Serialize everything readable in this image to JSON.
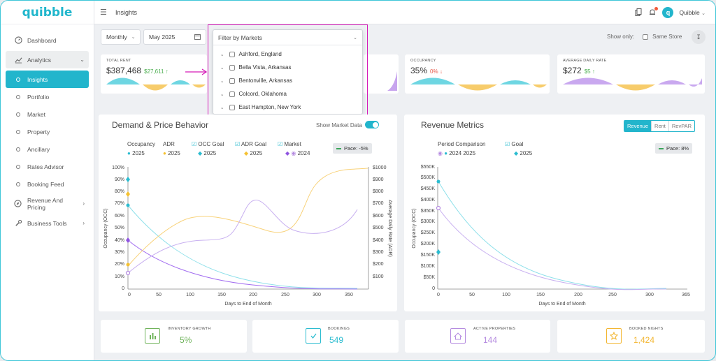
{
  "app": {
    "brand": "quibble",
    "page_title": "Insights",
    "user": "Quibble",
    "avatar_letter": "q"
  },
  "sidebar": {
    "items": [
      {
        "label": "Dashboard",
        "icon": "dashboard-icon"
      },
      {
        "label": "Analytics",
        "icon": "chart-line-icon",
        "expanded": true
      },
      {
        "label": "Insights",
        "active": true
      },
      {
        "label": "Portfolio"
      },
      {
        "label": "Market"
      },
      {
        "label": "Property"
      },
      {
        "label": "Ancillary"
      },
      {
        "label": "Rates Advisor"
      },
      {
        "label": "Booking Feed"
      },
      {
        "label": "Revenue And Pricing",
        "icon": "compass-icon"
      },
      {
        "label": "Business Tools",
        "icon": "wrench-icon"
      }
    ]
  },
  "filters": {
    "period": "Monthly",
    "month": "May 2025",
    "markets_placeholder": "Filter by Markets",
    "show_only": "Show only:",
    "same_store": "Same Store"
  },
  "markets_dropdown": {
    "options": [
      "Ashford, England",
      "Bella Vista, Arkansas",
      "Bentonville, Arkansas",
      "Colcord, Oklahoma",
      "East Hampton, New York"
    ]
  },
  "kpis": [
    {
      "label": "TOTAL RENT",
      "value": "$387,468",
      "change": "$27,611",
      "dir": "up"
    },
    {
      "label": "OCCUPANCY",
      "value": "35%",
      "change": "0%",
      "dir": "down"
    },
    {
      "label": "AVERAGE DAILY RATE",
      "value": "$272",
      "change": "$5",
      "dir": "up"
    }
  ],
  "demand_chart": {
    "title": "Demand & Price Behavior",
    "toggle_label": "Show Market Data",
    "pace": "Pace: -5%",
    "legend": [
      {
        "name": "Occupancy",
        "sub": "2025",
        "color": "#2bbcd0",
        "check": false
      },
      {
        "name": "ADR",
        "sub": "2025",
        "color": "#f5c131",
        "check": false
      },
      {
        "name": "OCC Goal",
        "sub": "2025",
        "color": "#2bbcd0",
        "check": true
      },
      {
        "name": "ADR Goal",
        "sub": "2025",
        "color": "#f5c131",
        "check": true
      },
      {
        "name": "Market",
        "sub": "2024",
        "color": "#8f54e0",
        "check": true
      }
    ],
    "xlabel": "Days to End of Month",
    "ylabel_left": "Occupancy (OCC)",
    "ylabel_right": "Average Daily Rate (ADR)",
    "x_ticks": [
      "0",
      "50",
      "100",
      "150",
      "200",
      "250",
      "300",
      "350"
    ],
    "y_left_ticks": [
      "0",
      "10%",
      "20%",
      "30%",
      "40%",
      "50%",
      "60%",
      "70%",
      "80%",
      "90%",
      "100%"
    ],
    "y_right_ticks": [
      "$100",
      "$200",
      "$300",
      "$400",
      "$500",
      "$600",
      "$700",
      "$800",
      "$900",
      "$1000"
    ]
  },
  "revenue_chart": {
    "title": "Revenue Metrics",
    "tabs": [
      "Revenue",
      "Rent",
      "RevPAR"
    ],
    "pace": "Pace: 8%",
    "legend": [
      {
        "name": "Period Comparison",
        "sub": "2024  2025",
        "check": false
      },
      {
        "name": "Goal",
        "sub": "2025",
        "check": true
      }
    ],
    "xlabel": "Days to End of Month",
    "ylabel": "Occupancy (OCC)",
    "x_ticks": [
      "0",
      "50",
      "100",
      "150",
      "200",
      "250",
      "300",
      "365"
    ],
    "y_ticks": [
      "0",
      "$50K",
      "$100K",
      "$150K",
      "$200K",
      "$250K",
      "$300K",
      "$350K",
      "$400K",
      "$450K",
      "$500K",
      "$550K"
    ]
  },
  "bottom_cards": [
    {
      "label": "INVENTORY GROWTH",
      "value": "5%",
      "color": "#6fb35a",
      "icon": "bar-chart-icon"
    },
    {
      "label": "BOOKINGS",
      "value": "549",
      "color": "#2bbcd0",
      "icon": "calendar-check-icon"
    },
    {
      "label": "ACTIVE PROPERTIES",
      "value": "144",
      "color": "#b58be0",
      "icon": "house-icon"
    },
    {
      "label": "BOOKED NIGHTS",
      "value": "1,424",
      "color": "#f3b631",
      "icon": "star-icon"
    }
  ]
}
